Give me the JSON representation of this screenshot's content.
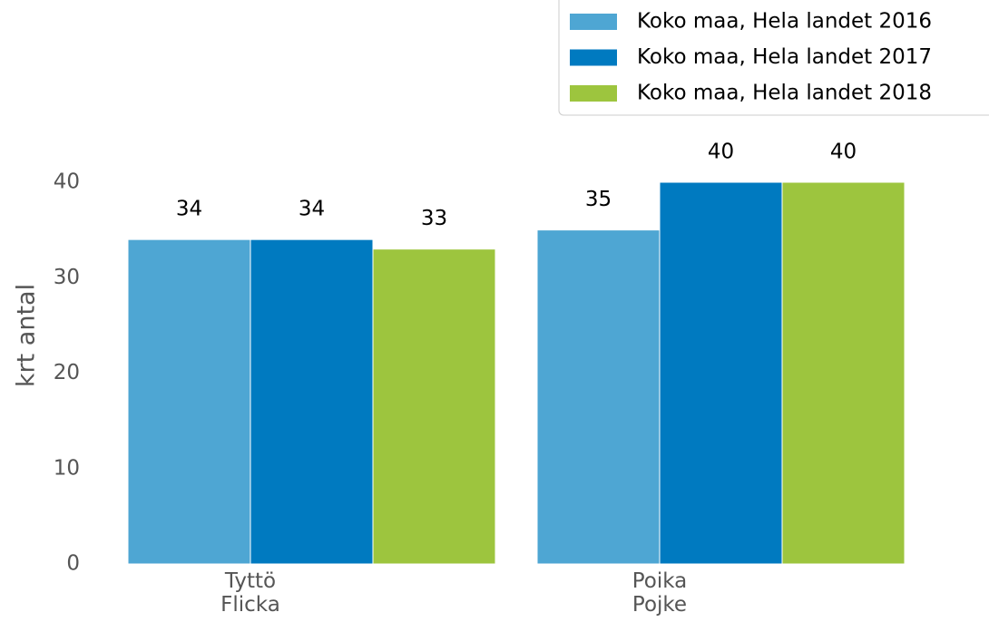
{
  "chart_data": {
    "type": "bar",
    "categories": [
      "Tyttö\nFlicka",
      "Poika\nPojke"
    ],
    "series": [
      {
        "name": "Koko maa, Hela landet 2016",
        "color": "#4ea6d3",
        "values": [
          34,
          35
        ]
      },
      {
        "name": "Koko maa, Hela landet 2017",
        "color": "#007ac0",
        "values": [
          34,
          40
        ]
      },
      {
        "name": "Koko maa, Hela landet 2018",
        "color": "#9dc53e",
        "values": [
          33,
          40
        ]
      }
    ],
    "y_label": "krt antal",
    "ylim": [
      0,
      40
    ],
    "yticks": [
      0,
      10,
      20,
      30,
      40
    ],
    "grid": false,
    "legend": "upper right"
  }
}
